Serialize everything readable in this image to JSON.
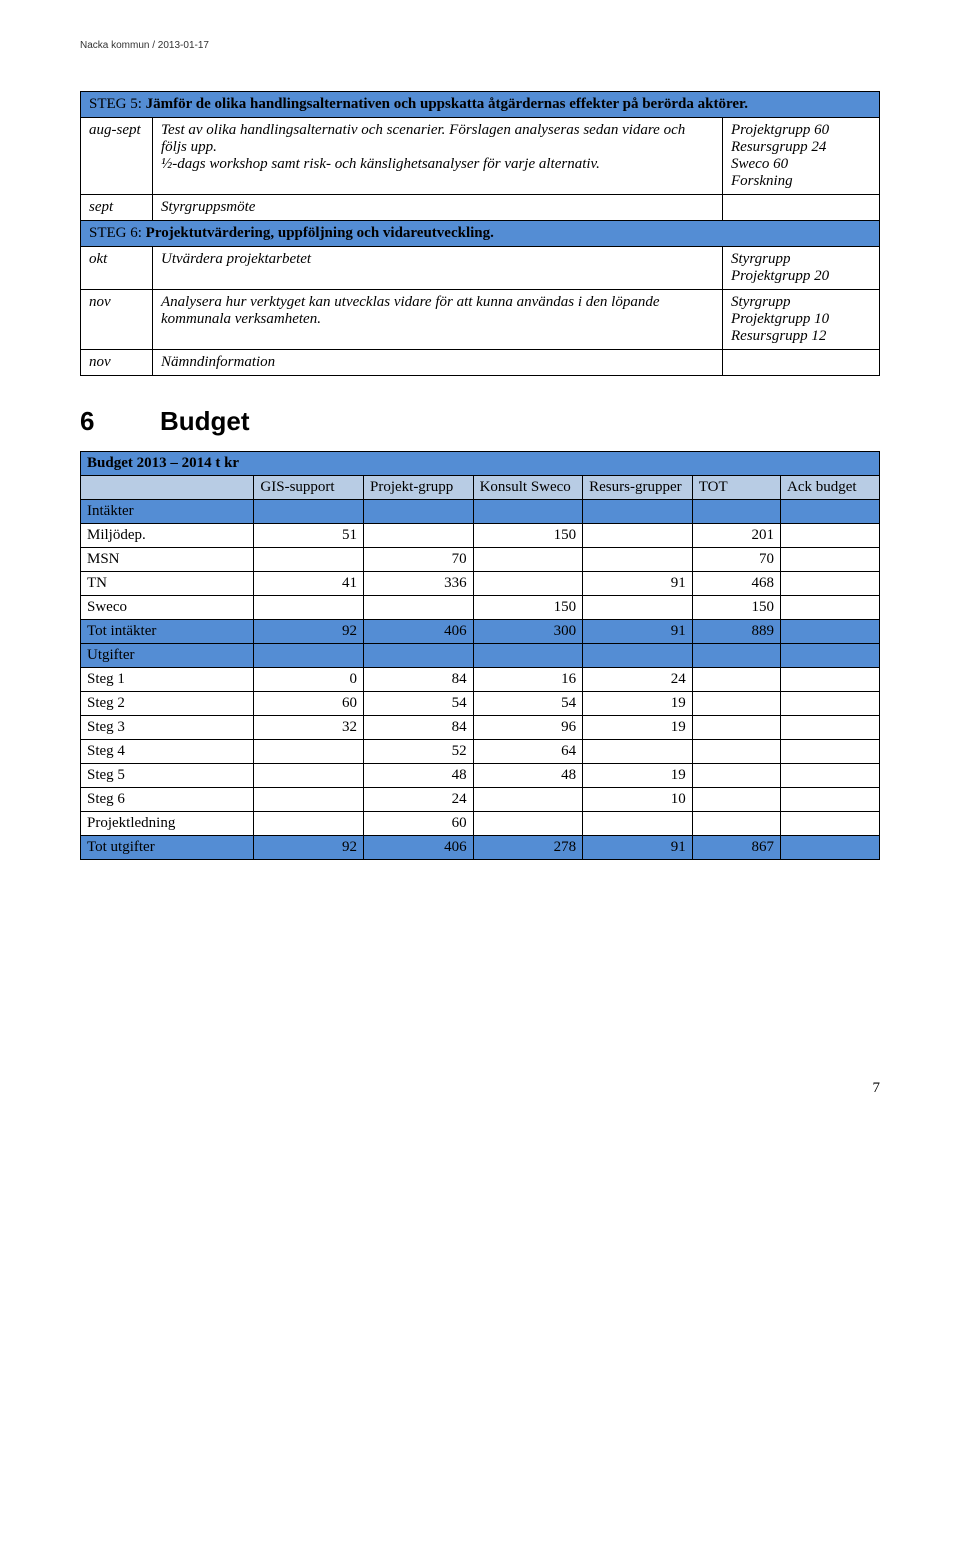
{
  "meta_header": "Nacka kommun  /  2013-01-17",
  "steps_table": {
    "step5_header_prefix": "STEG 5: ",
    "step5_header_bold": "Jämför de olika handlingsalternativen och uppskatta åtgärdernas effekter på berörda aktörer.",
    "row_augsept": {
      "when": "aug-sept",
      "desc": "Test av olika handlingsalternativ och scenarier. Förslagen analyseras sedan vidare och följs upp.\n½-dags workshop samt risk- och känslighetsanalyser för varje alternativ.",
      "who": "Projektgrupp 60\nResursgrupp 24\nSweco 60\nForskning"
    },
    "row_sept": {
      "when": "sept",
      "desc": "Styrgruppsmöte",
      "who": ""
    },
    "step6_header_prefix": "STEG 6: ",
    "step6_header_bold": "Projektutvärdering, uppföljning och vidareutveckling.",
    "row_okt": {
      "when": "okt",
      "desc": "Utvärdera projektarbetet",
      "who": "Styrgrupp\nProjektgrupp 20"
    },
    "row_nov1": {
      "when": "nov",
      "desc": "Analysera hur verktyget kan utvecklas vidare för att kunna användas i den löpande kommunala verksamheten.",
      "who": "Styrgrupp\nProjektgrupp 10\nResursgrupp 12"
    },
    "row_nov2": {
      "when": "nov",
      "desc": "Nämndinformation",
      "who": ""
    }
  },
  "section6_num": "6",
  "section6_title": "Budget",
  "budget": {
    "title": "Budget 2013 – 2014 t kr",
    "columns": [
      "",
      "GIS-support",
      "Projekt-grupp",
      "Konsult Sweco",
      "Resurs-grupper",
      "TOT",
      "Ack budget"
    ],
    "rows": [
      {
        "label": "Intäkter",
        "vals": [
          "",
          "",
          "",
          "",
          "",
          ""
        ],
        "hl": true
      },
      {
        "label": "Miljödep.",
        "vals": [
          "51",
          "",
          "150",
          "",
          "201",
          ""
        ]
      },
      {
        "label": "MSN",
        "vals": [
          "",
          "70",
          "",
          "",
          "70",
          ""
        ]
      },
      {
        "label": "TN",
        "vals": [
          "41",
          "336",
          "",
          "91",
          "468",
          ""
        ]
      },
      {
        "label": "Sweco",
        "vals": [
          "",
          "",
          "150",
          "",
          "150",
          ""
        ]
      },
      {
        "label": "Tot intäkter",
        "vals": [
          "92",
          "406",
          "300",
          "91",
          "889",
          ""
        ],
        "hl": true
      },
      {
        "label": "Utgifter",
        "vals": [
          "",
          "",
          "",
          "",
          "",
          ""
        ],
        "hl": true
      },
      {
        "label": "Steg 1",
        "vals": [
          "0",
          "84",
          "16",
          "24",
          "",
          ""
        ]
      },
      {
        "label": "Steg 2",
        "vals": [
          "60",
          "54",
          "54",
          "19",
          "",
          ""
        ]
      },
      {
        "label": "Steg 3",
        "vals": [
          "32",
          "84",
          "96",
          "19",
          "",
          ""
        ]
      },
      {
        "label": "Steg 4",
        "vals": [
          "",
          "52",
          "64",
          "",
          "",
          ""
        ]
      },
      {
        "label": "Steg 5",
        "vals": [
          "",
          "48",
          "48",
          "19",
          "",
          ""
        ]
      },
      {
        "label": "Steg 6",
        "vals": [
          "",
          "24",
          "",
          "10",
          "",
          ""
        ]
      },
      {
        "label": "Projektledning",
        "vals": [
          "",
          "60",
          "",
          "",
          "",
          ""
        ]
      },
      {
        "label": "Tot utgifter",
        "vals": [
          "92",
          "406",
          "278",
          "91",
          "867",
          ""
        ],
        "hl": true
      }
    ],
    "col_widths": [
      "150px",
      "90px",
      "90px",
      "90px",
      "90px",
      "70px",
      "80px"
    ]
  },
  "page_number": "7",
  "colors": {
    "header_blue": "#548dd4",
    "light_blue": "#b8cce4"
  }
}
